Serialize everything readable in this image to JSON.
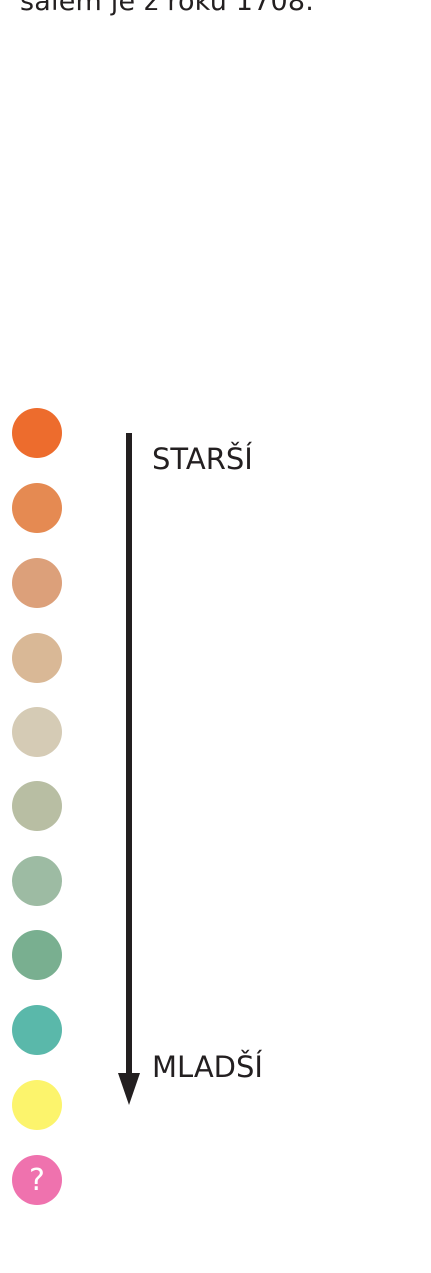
{
  "intro_text": "šálem je z roku 1708.",
  "legend": {
    "older_label": "STARŠÍ",
    "younger_label": "MLADŠÍ",
    "unknown_symbol": "?",
    "colors": [
      "#ed6c2d",
      "#e58a52",
      "#dca07a",
      "#d9b896",
      "#d5cbb5",
      "#b8bea3",
      "#9dbba3",
      "#79af90",
      "#5ab8aa",
      "#fcf46c",
      "#ef72ae"
    ],
    "arrow_color": "#231f20"
  }
}
